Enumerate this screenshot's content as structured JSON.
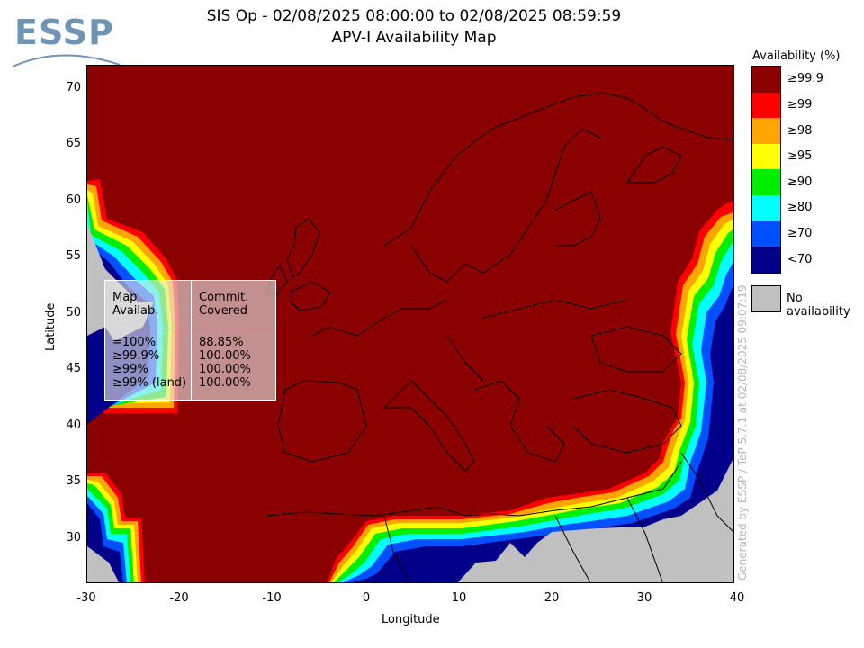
{
  "logo": {
    "text": "ESSP"
  },
  "title": {
    "line1": "SIS Op - 02/08/2025 08:00:00 to 02/08/2025 08:59:59",
    "line2": "APV-I Availability Map"
  },
  "axes": {
    "xlabel": "Longitude",
    "ylabel": "Latitude",
    "xticks": [
      "-30",
      "-20",
      "-10",
      "0",
      "10",
      "20",
      "30",
      "40"
    ],
    "yticks": [
      "70",
      "65",
      "60",
      "55",
      "50",
      "45",
      "40",
      "35",
      "30"
    ]
  },
  "legend": {
    "title": "Availability (%)",
    "levels": [
      {
        "label": "≥99.9",
        "color": "#8b0000"
      },
      {
        "label": "≥99",
        "color": "#ff0000"
      },
      {
        "label": "≥98",
        "color": "#ffa500"
      },
      {
        "label": "≥95",
        "color": "#ffff00"
      },
      {
        "label": "≥90",
        "color": "#00ee00"
      },
      {
        "label": "≥80",
        "color": "#00ffff"
      },
      {
        "label": "≥70",
        "color": "#0050ff"
      },
      {
        "label": "<70",
        "color": "#00008b"
      }
    ],
    "no_availability": {
      "label": "No availability",
      "color": "#c0c0c0"
    }
  },
  "stats_table": {
    "header_col1": "Map\nAvailab.",
    "header_col2": "Commit.\nCovered",
    "rows": [
      {
        "availability": "=100%",
        "covered": "88.85%"
      },
      {
        "availability": "≥99.9%",
        "covered": "100.00%"
      },
      {
        "availability": "≥99%",
        "covered": "100.00%"
      },
      {
        "availability": "≥99% (land)",
        "covered": "100.00%"
      }
    ]
  },
  "generated_by": "Generated by ESSP / TeP 5.7.1 at 02/08/2025 09:07:19"
}
